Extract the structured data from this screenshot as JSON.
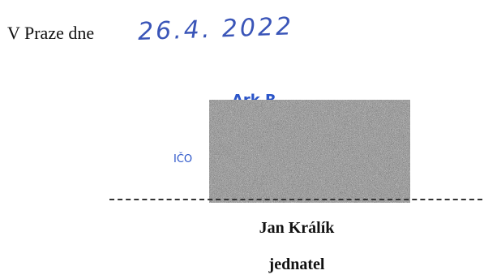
{
  "place_date": {
    "label": "V Praze dne",
    "handwritten_date": "26.4. 2022"
  },
  "stamp": {
    "top_text": "Ark R",
    "side_text": "IČO"
  },
  "signature": {
    "name": "Jan Králík",
    "role": "jednatel"
  },
  "colors": {
    "ink_blue": "#3a55b8",
    "stamp_blue": "#2b55c9",
    "text": "#111111"
  }
}
